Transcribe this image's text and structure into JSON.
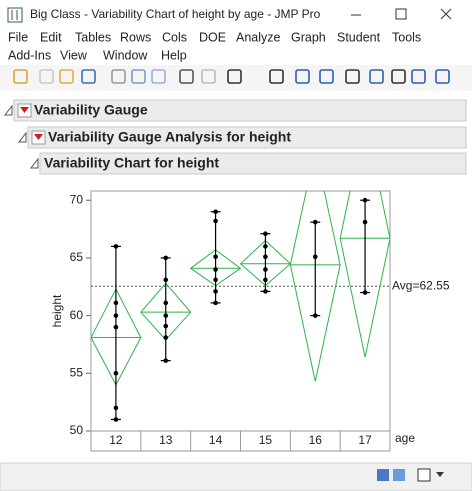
{
  "window": {
    "title": "Big Class - Variability Chart of height by age - JMP Pro"
  },
  "menu_rows": [
    [
      "File",
      "Edit",
      "Tables",
      "Rows",
      "Cols",
      "DOE",
      "Analyze",
      "Graph",
      "Student",
      "Tools"
    ],
    [
      "Add-Ins",
      "View",
      "Window",
      "Help"
    ]
  ],
  "outline": [
    "Variability Gauge",
    "Variability Gauge Analysis for height",
    "Variability Chart for height"
  ],
  "chart_data": {
    "type": "variability",
    "y_label": "height",
    "x_label": "age",
    "categories": [
      "12",
      "13",
      "14",
      "15",
      "16",
      "17"
    ],
    "points": [
      [
        66,
        61.1,
        60,
        59,
        55,
        52,
        51
      ],
      [
        65,
        63.1,
        61.1,
        60,
        59.1,
        58.1,
        56.1
      ],
      [
        69,
        68.2,
        65.1,
        64,
        63.1,
        62.1,
        61.1
      ],
      [
        67.1,
        66,
        65.1,
        64,
        63.1,
        62.1
      ],
      [
        68.1,
        65.1,
        60
      ],
      [
        70,
        68.1,
        62
      ]
    ],
    "means": [
      58.1,
      60.3,
      64.1,
      64.5,
      64.4,
      66.7
    ],
    "lower": [
      54,
      57.9,
      62.6,
      62.6,
      54.3,
      56.4
    ],
    "upper": [
      62.3,
      62.8,
      65.7,
      66.5,
      74.4,
      77
    ],
    "average": 62.55,
    "average_label": "Avg=62.55",
    "ylim": [
      50,
      70.8
    ],
    "yticks": [
      50,
      55,
      60,
      65,
      70
    ],
    "diamond_color": "#2fb44a",
    "point_color": "#000000"
  }
}
